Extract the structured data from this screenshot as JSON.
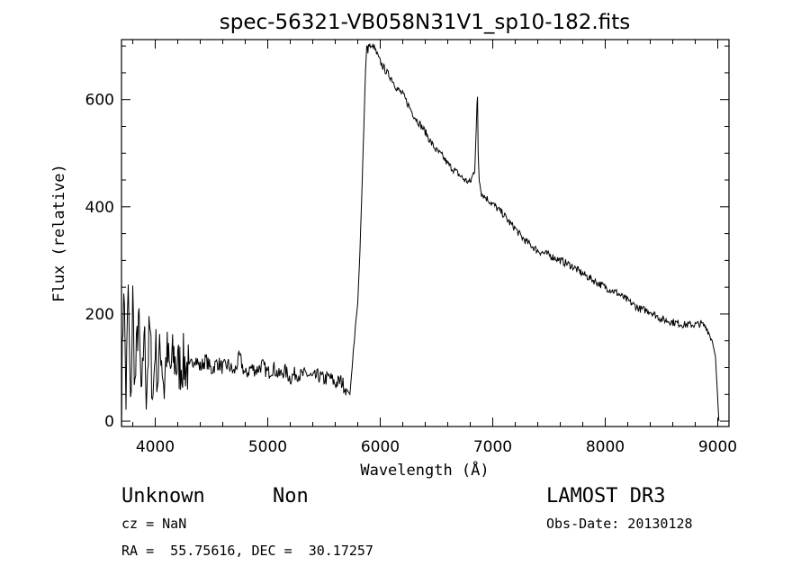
{
  "chart_data": {
    "type": "line",
    "title": "spec-56321-VB058N31V1_sp10-182.fits",
    "xlabel": "Wavelength (Å)",
    "ylabel": "Flux (relative)",
    "xlim": [
      3700,
      9100
    ],
    "ylim": [
      -10,
      712
    ],
    "xticks": [
      4000,
      5000,
      6000,
      7000,
      8000,
      9000
    ],
    "yticks": [
      0,
      200,
      400,
      600
    ],
    "grid": false,
    "line_color": "#000000",
    "series": [
      {
        "x": [
          3700,
          3720,
          3740,
          3760,
          3780,
          3800,
          3820,
          3850,
          3880,
          3900,
          3920,
          3950,
          3980,
          4000,
          4020,
          4050,
          4080,
          4100,
          4130,
          4160,
          4200,
          4250,
          4300,
          4350,
          4400,
          4450,
          4500,
          4550,
          4600,
          4650,
          4700,
          4750,
          4800,
          4850,
          4900,
          4950,
          5000,
          5050,
          5100,
          5150,
          5200,
          5250,
          5300,
          5350,
          5400,
          5450,
          5500,
          5550,
          5600,
          5650,
          5700,
          5730,
          5750,
          5760,
          5770,
          5780,
          5790,
          5800,
          5820,
          5840,
          5860,
          5870,
          5880,
          5890,
          5900,
          5920,
          5940,
          5960,
          5980,
          6000,
          6030,
          6060,
          6100,
          6150,
          6200,
          6250,
          6300,
          6350,
          6400,
          6450,
          6500,
          6550,
          6600,
          6650,
          6700,
          6750,
          6800,
          6840,
          6860,
          6865,
          6870,
          6880,
          6890,
          6900,
          6950,
          7000,
          7050,
          7100,
          7150,
          7200,
          7250,
          7300,
          7400,
          7500,
          7600,
          7700,
          7800,
          7900,
          8000,
          8100,
          8200,
          8300,
          8400,
          8500,
          8600,
          8700,
          8800,
          8850,
          8900,
          8950,
          8980,
          9000,
          9010
        ],
        "y": [
          20,
          270,
          40,
          250,
          10,
          230,
          60,
          200,
          20,
          180,
          60,
          170,
          40,
          150,
          80,
          140,
          60,
          130,
          90,
          120,
          100,
          110,
          95,
          120,
          100,
          115,
          95,
          110,
          100,
          105,
          90,
          120,
          85,
          100,
          95,
          105,
          90,
          100,
          85,
          95,
          80,
          90,
          85,
          88,
          80,
          85,
          78,
          82,
          70,
          75,
          60,
          50,
          100,
          130,
          150,
          180,
          200,
          220,
          320,
          450,
          590,
          660,
          700,
          690,
          705,
          695,
          700,
          690,
          680,
          670,
          660,
          650,
          640,
          620,
          610,
          590,
          570,
          555,
          540,
          520,
          505,
          495,
          480,
          470,
          460,
          450,
          445,
          470,
          590,
          600,
          500,
          450,
          440,
          425,
          415,
          405,
          395,
          385,
          370,
          360,
          345,
          335,
          318,
          310,
          300,
          290,
          275,
          262,
          250,
          240,
          225,
          210,
          205,
          190,
          185,
          180,
          180,
          182,
          175,
          150,
          120,
          40,
          0
        ]
      }
    ]
  },
  "annotations": {
    "object_class": "Unknown",
    "object_subclass": "Non",
    "survey": "LAMOST DR3",
    "cz": "cz = NaN",
    "obs_date": "Obs-Date: 20130128",
    "coords": "RA =  55.75616, DEC =  30.17257"
  }
}
